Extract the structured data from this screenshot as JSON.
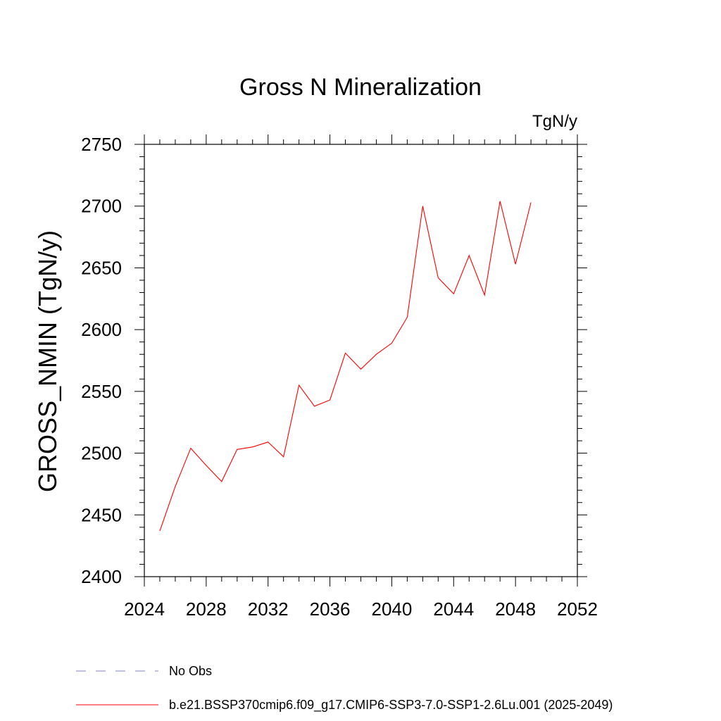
{
  "chart_data": {
    "type": "line",
    "title": "Gross N Mineralization",
    "units_label": "TgN/y",
    "ylabel": "GROSS_NMIN  (TgN/y)",
    "xlabel": "",
    "xlim": [
      2024,
      2052
    ],
    "ylim": [
      2400,
      2750
    ],
    "xticks": [
      2024,
      2028,
      2032,
      2036,
      2040,
      2044,
      2048,
      2052
    ],
    "yticks": [
      2400,
      2450,
      2500,
      2550,
      2600,
      2650,
      2700,
      2750
    ],
    "series": [
      {
        "name": "b.e21.BSSP370cmip6.f09_g17.CMIP6-SSP3-7.0-SSP1-2.6Lu.001 (2025-2049)",
        "color": "#ff0000",
        "x": [
          2025,
          2026,
          2027,
          2028,
          2029,
          2030,
          2031,
          2032,
          2033,
          2034,
          2035,
          2036,
          2037,
          2038,
          2039,
          2040,
          2041,
          2042,
          2043,
          2044,
          2045,
          2046,
          2047,
          2048,
          2049
        ],
        "y": [
          2437,
          2473,
          2504,
          2490,
          2477,
          2503,
          2505,
          2509,
          2497,
          2555,
          2538,
          2543,
          2581,
          2568,
          2580,
          2589,
          2610,
          2700,
          2642,
          2629,
          2660,
          2628,
          2704,
          2653,
          2703
        ]
      }
    ],
    "legend": [
      {
        "label": "No Obs",
        "color": "#8080c0",
        "style": "dashed"
      },
      {
        "label": "b.e21.BSSP370cmip6.f09_g17.CMIP6-SSP3-7.0-SSP1-2.6Lu.001 (2025-2049)",
        "color": "#ff0000",
        "style": "solid"
      }
    ],
    "legend_position": "bottom",
    "grid": false
  }
}
